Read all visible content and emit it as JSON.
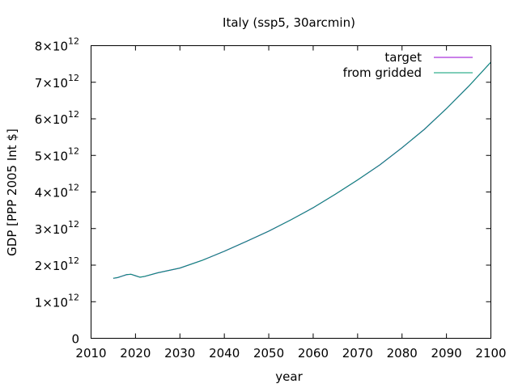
{
  "chart_data": {
    "type": "line",
    "title": "Italy (ssp5, 30arcmin)",
    "xlabel": "year",
    "ylabel": "GDP [PPP 2005 Int $]",
    "xlim": [
      2010,
      2100
    ],
    "ylim": [
      0,
      8000000000000
    ],
    "x_ticks": [
      "2010",
      "2020",
      "2030",
      "2040",
      "2050",
      "2060",
      "2070",
      "2080",
      "2090",
      "2100"
    ],
    "y_ticks": [
      {
        "base": "0",
        "exp": ""
      },
      {
        "base": "1×10",
        "exp": "12"
      },
      {
        "base": "2×10",
        "exp": "12"
      },
      {
        "base": "3×10",
        "exp": "12"
      },
      {
        "base": "4×10",
        "exp": "12"
      },
      {
        "base": "5×10",
        "exp": "12"
      },
      {
        "base": "6×10",
        "exp": "12"
      },
      {
        "base": "7×10",
        "exp": "12"
      },
      {
        "base": "8×10",
        "exp": "12"
      }
    ],
    "grid": false,
    "legend_position": "top-right",
    "x": [
      2015,
      2016,
      2017,
      2018,
      2019,
      2020,
      2021,
      2022,
      2025,
      2030,
      2035,
      2040,
      2045,
      2050,
      2055,
      2060,
      2065,
      2070,
      2075,
      2080,
      2085,
      2090,
      2095,
      2100
    ],
    "series": [
      {
        "name": "target",
        "color": "#9400d3",
        "values": [
          1640000000000.0,
          1660000000000.0,
          1700000000000.0,
          1740000000000.0,
          1750000000000.0,
          1710000000000.0,
          1670000000000.0,
          1690000000000.0,
          1790000000000.0,
          1920000000000.0,
          2130000000000.0,
          2380000000000.0,
          2650000000000.0,
          2930000000000.0,
          3240000000000.0,
          3570000000000.0,
          3940000000000.0,
          4330000000000.0,
          4740000000000.0,
          5210000000000.0,
          5710000000000.0,
          6280000000000.0,
          6890000000000.0,
          7550000000000.0
        ]
      },
      {
        "name": "from gridded",
        "color": "#009e73",
        "values": [
          1640000000000.0,
          1660000000000.0,
          1700000000000.0,
          1740000000000.0,
          1750000000000.0,
          1710000000000.0,
          1670000000000.0,
          1690000000000.0,
          1790000000000.0,
          1920000000000.0,
          2130000000000.0,
          2380000000000.0,
          2650000000000.0,
          2930000000000.0,
          3240000000000.0,
          3570000000000.0,
          3940000000000.0,
          4330000000000.0,
          4740000000000.0,
          5210000000000.0,
          5710000000000.0,
          6280000000000.0,
          6890000000000.0,
          7550000000000.0
        ]
      }
    ]
  }
}
